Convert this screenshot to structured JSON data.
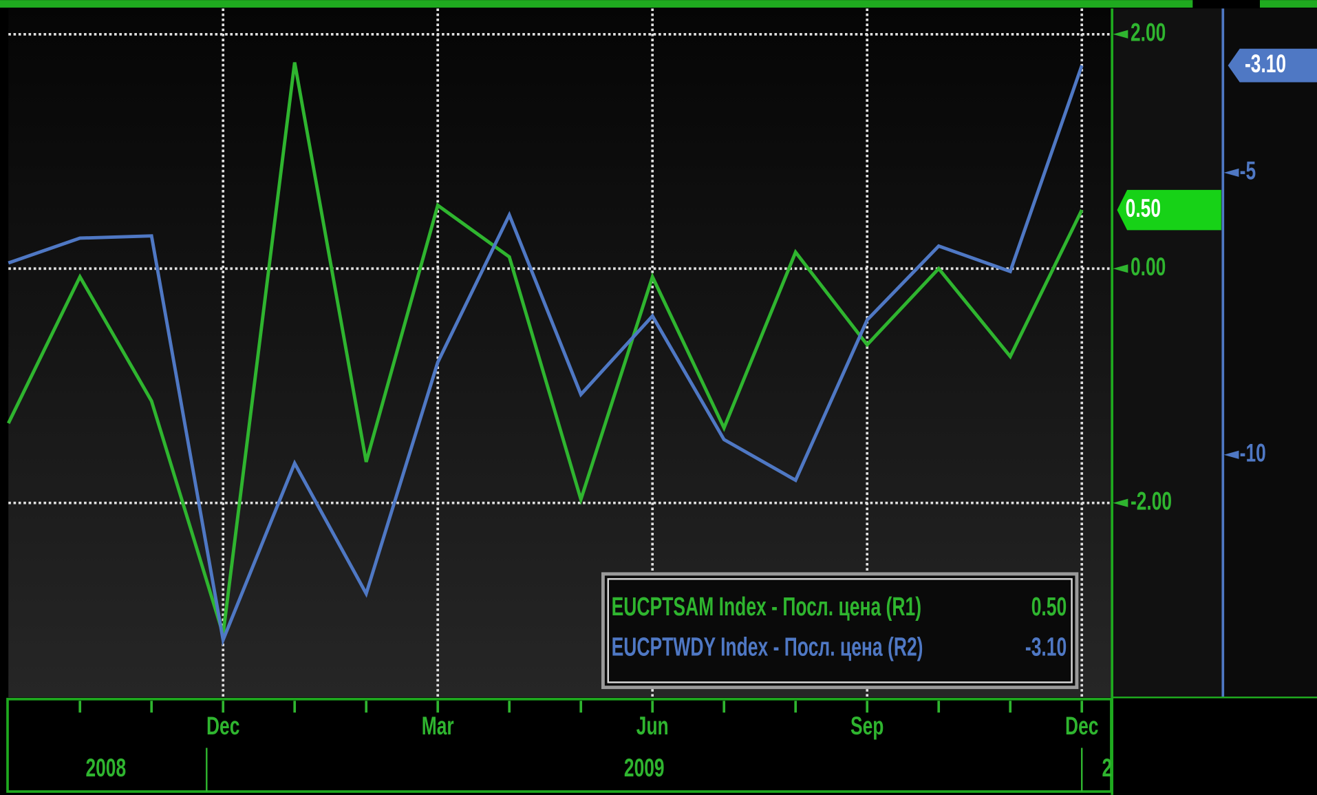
{
  "chart_data": {
    "type": "line",
    "categories": [
      null,
      null,
      null,
      "Dec",
      null,
      null,
      "Mar",
      null,
      null,
      "Jun",
      null,
      null,
      "Sep",
      null,
      null,
      "Dec"
    ],
    "x_year_labels": [
      "2008",
      "2009",
      "2"
    ],
    "series": [
      {
        "name": "EUCPTSAM Index - Посл. цена (R1)",
        "color": "#2fb52f",
        "axis": "y",
        "values": [
          -1.32,
          -0.07,
          -1.13,
          -3.12,
          1.76,
          -1.65,
          0.54,
          0.1,
          -1.97,
          -0.07,
          -1.36,
          0.14,
          -0.65,
          0.0,
          -0.75,
          0.5
        ],
        "value_labels": [
          null,
          null,
          null,
          null,
          null,
          null,
          null,
          null,
          null,
          null,
          null,
          null,
          null,
          null,
          null,
          "0.50"
        ]
      },
      {
        "name": "EUCPTWDY Index - Посл. цена (R2)",
        "color": "#4f78c4",
        "axis": "y2",
        "values": [
          -6.6,
          -6.16,
          -6.12,
          -13.28,
          -10.15,
          -12.46,
          -8.36,
          -5.75,
          -8.93,
          -7.54,
          -9.73,
          -10.45,
          -7.61,
          -6.3,
          -6.75,
          -3.1
        ],
        "value_labels": [
          null,
          null,
          null,
          null,
          null,
          null,
          null,
          null,
          null,
          null,
          null,
          null,
          null,
          null,
          null,
          "-3.10"
        ]
      }
    ],
    "ylim": [
      -3.66,
      2.22
    ],
    "yticks": [
      {
        "value": 2,
        "label": "2.00"
      },
      {
        "value": 0,
        "label": "0.00"
      },
      {
        "value": -2,
        "label": "-2.00"
      }
    ],
    "y2lim": [
      -14.3,
      -2.09
    ],
    "y2ticks": [
      -5,
      -10
    ],
    "grid": true
  }
}
